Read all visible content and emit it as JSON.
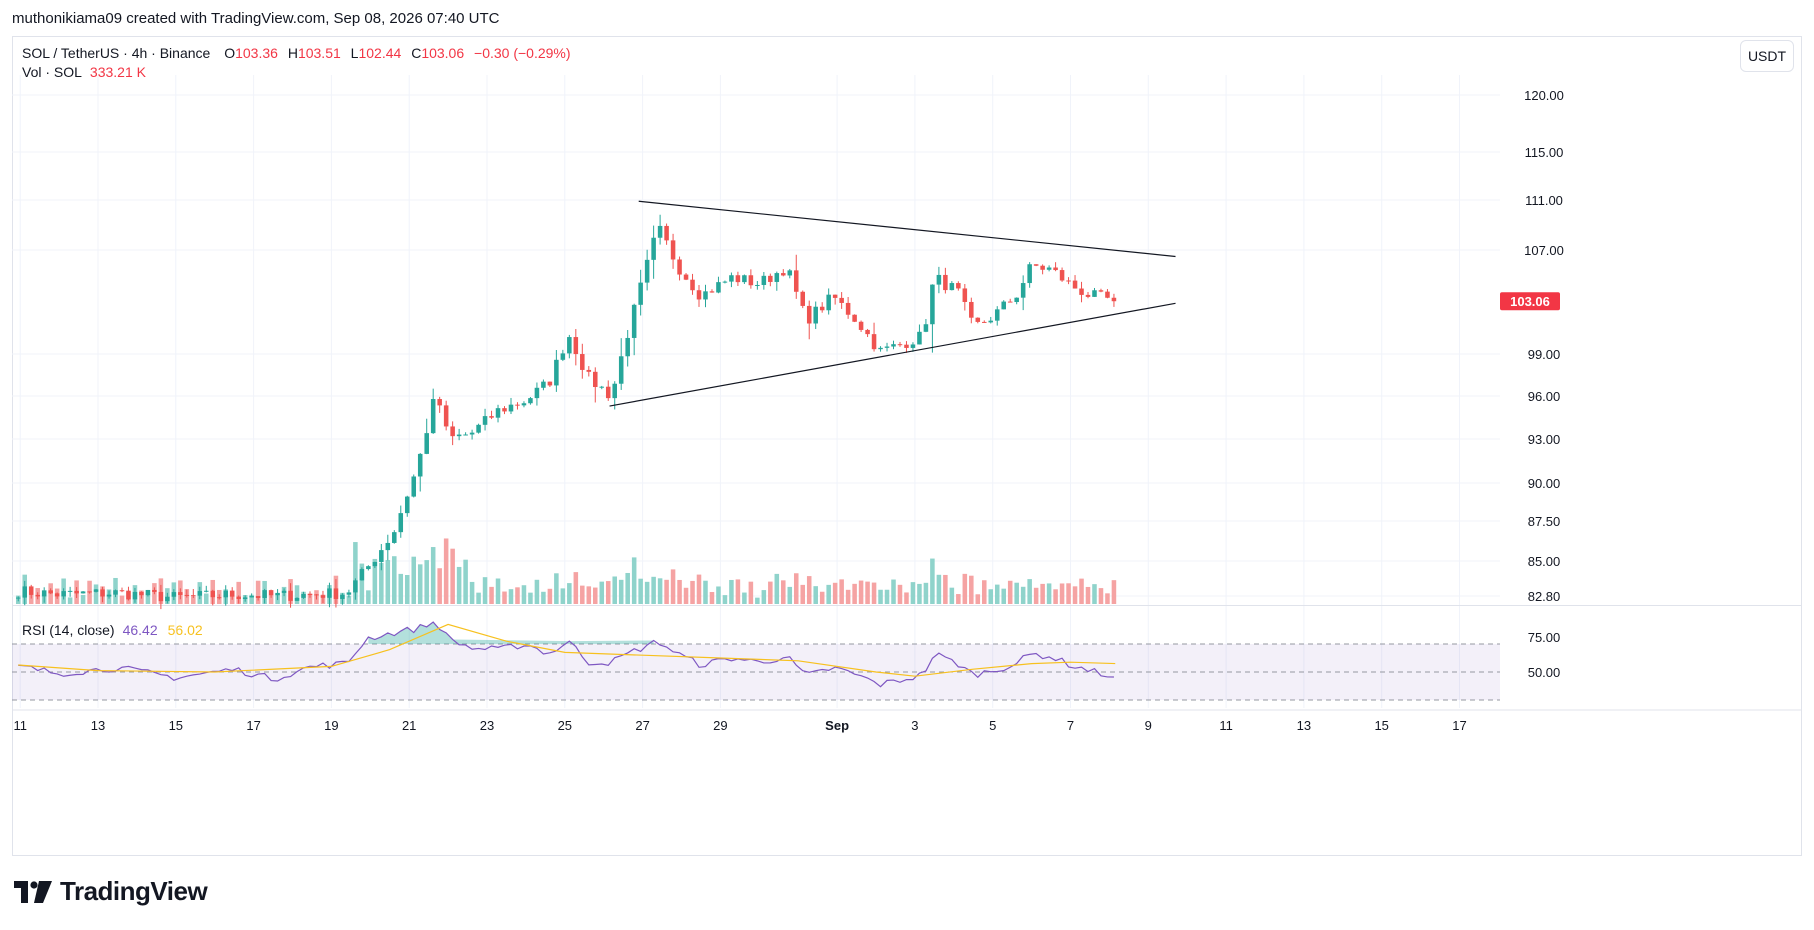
{
  "header": {
    "author_line": "muthonikiama09 created with TradingView.com, Sep 08, 2026 07:40 UTC"
  },
  "legend": {
    "symbol": "SOL / TetherUS · 4h · Binance",
    "o_label": "O",
    "o_value": "103.36",
    "h_label": "H",
    "h_value": "103.51",
    "l_label": "L",
    "l_value": "102.44",
    "c_label": "C",
    "c_value": "103.06",
    "change": "−0.30 (−0.29%)",
    "vol_label": "Vol · SOL",
    "vol_value": "333.21 K",
    "rsi_label": "RSI (14, close)",
    "rsi_value": "46.42",
    "rsi_ma_value": "56.02"
  },
  "unit_button": "USDT",
  "footer": {
    "brand": "TradingView",
    "logo_icon": "tradingview-logo-icon"
  },
  "colors": {
    "up": "#26a69a",
    "down": "#ef5350",
    "up_vol": "#8fd3cb",
    "down_vol": "#f5a3a3",
    "rsi_line": "#7e57c2",
    "rsi_ma": "#f7c11f",
    "last_price_bg": "#f23645"
  },
  "chart_data": {
    "type": "candlestick",
    "interval": "4h",
    "price_axis": {
      "ticks": [
        {
          "value": 120,
          "label": "120.00"
        },
        {
          "value": 115,
          "label": "115.00"
        },
        {
          "value": 111,
          "label": "111.00"
        },
        {
          "value": 107,
          "label": "107.00"
        },
        {
          "value": 99,
          "label": "99.00"
        },
        {
          "value": 96,
          "label": "96.00"
        },
        {
          "value": 93,
          "label": "93.00"
        },
        {
          "value": 90,
          "label": "90.00"
        },
        {
          "value": 87.5,
          "label": "87.50"
        },
        {
          "value": 85,
          "label": "85.00"
        },
        {
          "value": 82.8,
          "label": "82.80"
        }
      ],
      "last_price": 103.06,
      "last_price_label": "103.06"
    },
    "time_axis": {
      "ticks": [
        {
          "day": 11,
          "label": "11"
        },
        {
          "day": 13,
          "label": "13"
        },
        {
          "day": 15,
          "label": "15"
        },
        {
          "day": 17,
          "label": "17"
        },
        {
          "day": 19,
          "label": "19"
        },
        {
          "day": 21,
          "label": "21"
        },
        {
          "day": 23,
          "label": "23"
        },
        {
          "day": 25,
          "label": "25"
        },
        {
          "day": 27,
          "label": "27"
        },
        {
          "day": 29,
          "label": "29"
        },
        {
          "day": 32,
          "label": "Sep"
        },
        {
          "day": 34,
          "label": "3"
        },
        {
          "day": 36,
          "label": "5"
        },
        {
          "day": 38,
          "label": "7"
        },
        {
          "day": 40,
          "label": "9"
        },
        {
          "day": 42,
          "label": "11"
        },
        {
          "day": 44,
          "label": "13"
        },
        {
          "day": 46,
          "label": "15"
        },
        {
          "day": 48,
          "label": "17"
        }
      ],
      "range": [
        10.95,
        48.8
      ]
    },
    "rsi_axis": {
      "ticks": [
        {
          "value": 75,
          "label": "75.00"
        },
        {
          "value": 50,
          "label": "50.00"
        }
      ],
      "band": [
        30,
        70
      ]
    },
    "triangle_pattern": {
      "upper": [
        {
          "day": 26.9,
          "price": 110.9
        },
        {
          "day": 40.7,
          "price": 106.5
        }
      ],
      "lower": [
        {
          "day": 26.15,
          "price": 95.3
        },
        {
          "day": 40.7,
          "price": 102.9
        }
      ]
    },
    "anchors": [
      {
        "day": 10.95,
        "price": 83.1,
        "rsi": 54
      },
      {
        "day": 12.0,
        "price": 82.9,
        "rsi": 49
      },
      {
        "day": 13.5,
        "price": 83.0,
        "rsi": 53
      },
      {
        "day": 15.0,
        "price": 82.7,
        "rsi": 46
      },
      {
        "day": 16.5,
        "price": 82.9,
        "rsi": 52
      },
      {
        "day": 17.5,
        "price": 82.8,
        "rsi": 45
      },
      {
        "day": 18.5,
        "price": 82.9,
        "rsi": 54
      },
      {
        "day": 19.4,
        "price": 83.0,
        "rsi": 56
      },
      {
        "day": 19.9,
        "price": 84.5,
        "rsi": 74
      },
      {
        "day": 20.6,
        "price": 86.8,
        "rsi": 78
      },
      {
        "day": 21.2,
        "price": 91.0,
        "rsi": 81
      },
      {
        "day": 21.7,
        "price": 96.3,
        "rsi": 86
      },
      {
        "day": 22.0,
        "price": 93.0,
        "rsi": 74
      },
      {
        "day": 22.6,
        "price": 93.4,
        "rsi": 67
      },
      {
        "day": 23.3,
        "price": 95.0,
        "rsi": 66
      },
      {
        "day": 24.0,
        "price": 95.7,
        "rsi": 70
      },
      {
        "day": 24.6,
        "price": 97.0,
        "rsi": 63
      },
      {
        "day": 25.1,
        "price": 100.5,
        "rsi": 72
      },
      {
        "day": 25.6,
        "price": 97.3,
        "rsi": 57
      },
      {
        "day": 26.2,
        "price": 96.0,
        "rsi": 57
      },
      {
        "day": 26.7,
        "price": 101.5,
        "rsi": 64
      },
      {
        "day": 27.4,
        "price": 108.8,
        "rsi": 72
      },
      {
        "day": 27.9,
        "price": 105.8,
        "rsi": 63
      },
      {
        "day": 28.5,
        "price": 103.5,
        "rsi": 55
      },
      {
        "day": 29.3,
        "price": 104.9,
        "rsi": 60
      },
      {
        "day": 30.0,
        "price": 104.4,
        "rsi": 57
      },
      {
        "day": 30.7,
        "price": 105.7,
        "rsi": 61
      },
      {
        "day": 31.2,
        "price": 101.6,
        "rsi": 47
      },
      {
        "day": 31.9,
        "price": 103.4,
        "rsi": 53
      },
      {
        "day": 32.5,
        "price": 101.6,
        "rsi": 48
      },
      {
        "day": 33.1,
        "price": 99.2,
        "rsi": 41
      },
      {
        "day": 33.6,
        "price": 99.7,
        "rsi": 44
      },
      {
        "day": 34.2,
        "price": 100.4,
        "rsi": 48
      },
      {
        "day": 34.5,
        "price": 104.9,
        "rsi": 63
      },
      {
        "day": 35.1,
        "price": 103.8,
        "rsi": 56
      },
      {
        "day": 35.5,
        "price": 101.0,
        "rsi": 48
      },
      {
        "day": 36.0,
        "price": 101.9,
        "rsi": 51
      },
      {
        "day": 36.6,
        "price": 103.5,
        "rsi": 56
      },
      {
        "day": 37.0,
        "price": 105.8,
        "rsi": 63
      },
      {
        "day": 37.5,
        "price": 105.5,
        "rsi": 61
      },
      {
        "day": 38.0,
        "price": 104.3,
        "rsi": 55
      },
      {
        "day": 38.5,
        "price": 103.5,
        "rsi": 51
      },
      {
        "day": 39.15,
        "price": 103.06,
        "rsi": 46.42
      }
    ],
    "rsi_ma_anchors": [
      {
        "day": 10.95,
        "value": 55
      },
      {
        "day": 13.0,
        "value": 51
      },
      {
        "day": 16.0,
        "value": 50
      },
      {
        "day": 19.0,
        "value": 54
      },
      {
        "day": 20.5,
        "value": 66
      },
      {
        "day": 22.0,
        "value": 84
      },
      {
        "day": 23.5,
        "value": 72
      },
      {
        "day": 25.0,
        "value": 64
      },
      {
        "day": 27.0,
        "value": 62
      },
      {
        "day": 29.0,
        "value": 60
      },
      {
        "day": 31.0,
        "value": 58
      },
      {
        "day": 33.0,
        "value": 50
      },
      {
        "day": 34.0,
        "value": 47
      },
      {
        "day": 35.5,
        "value": 52
      },
      {
        "day": 37.0,
        "value": 56
      },
      {
        "day": 38.0,
        "value": 57
      },
      {
        "day": 39.15,
        "value": 56.02
      }
    ]
  }
}
